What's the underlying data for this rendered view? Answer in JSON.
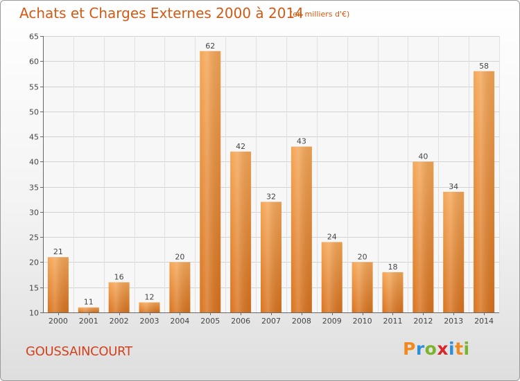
{
  "header": {
    "title": "Achats et Charges Externes 2000 à 2014",
    "subtitle": "(en milliers d'€)"
  },
  "footer": {
    "place": "GOUSSAINCOURT",
    "logo": "Proxiti"
  },
  "colors": {
    "title": "#d25a14",
    "bar_top": "#f5a656",
    "bar_bottom": "#d9731e",
    "logo_letters": [
      "#f08a1e",
      "#2d8fd8",
      "#7ab32c",
      "#d8262c",
      "#2d8fd8",
      "#f08a1e",
      "#7ab32c"
    ]
  },
  "chart_data": {
    "type": "bar",
    "categories": [
      "2000",
      "2001",
      "2002",
      "2003",
      "2004",
      "2005",
      "2006",
      "2007",
      "2008",
      "2009",
      "2010",
      "2011",
      "2012",
      "2013",
      "2014"
    ],
    "values": [
      21,
      11,
      16,
      12,
      20,
      62,
      42,
      32,
      43,
      24,
      20,
      18,
      40,
      34,
      58
    ],
    "title": "Achats et Charges Externes 2000 à 2014",
    "ylim": [
      10,
      65
    ],
    "yticks": [
      10,
      15,
      20,
      25,
      30,
      35,
      40,
      45,
      50,
      55,
      60,
      65
    ],
    "grid": true,
    "data_labels": true
  }
}
